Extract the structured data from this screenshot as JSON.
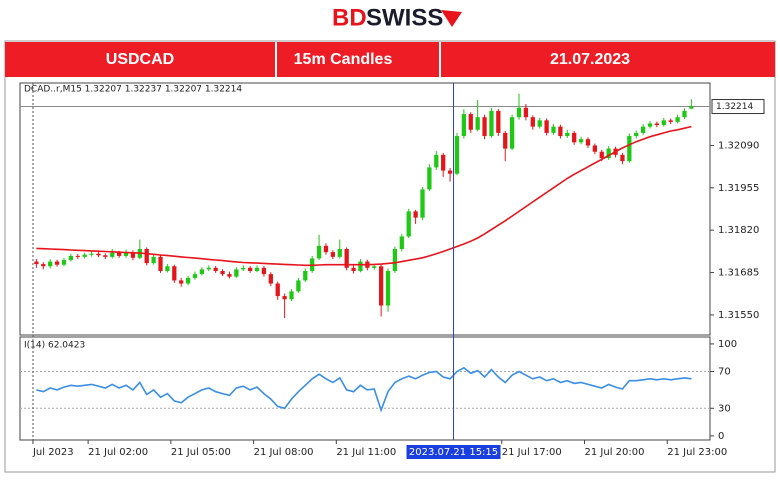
{
  "logo": [
    "BD",
    "SWISS"
  ],
  "header": {
    "symbol": "USDCAD",
    "timeframe": "15m Candles",
    "date": "21.07.2023"
  },
  "chart_data": {
    "type": "candlestick",
    "info": "DCAD..r,M15  1.32207 1.32237 1.32207 1.32214",
    "up_color": "#1fc814",
    "down_color": "#e3161c",
    "x": [
      0,
      0.25,
      0.5,
      0.75,
      1,
      1.25,
      1.5,
      1.75,
      2,
      2.25,
      2.5,
      2.75,
      3,
      3.25,
      3.5,
      3.75,
      4,
      4.25,
      4.5,
      4.75,
      5,
      5.25,
      5.5,
      5.75,
      6,
      6.25,
      6.5,
      6.75,
      7,
      7.25,
      7.5,
      7.75,
      8,
      8.25,
      8.5,
      8.75,
      9,
      9.25,
      9.5,
      9.75,
      10,
      10.25,
      10.5,
      10.75,
      11,
      11.25,
      11.5,
      11.75,
      12,
      12.25,
      12.5,
      12.75,
      13,
      13.25,
      13.5,
      13.75,
      14,
      14.25,
      14.5,
      14.75,
      15,
      15.25,
      15.5,
      15.75,
      16,
      16.25,
      16.5,
      16.75,
      17,
      17.25,
      17.5,
      17.75,
      18,
      18.25,
      18.5,
      18.75,
      19,
      19.25,
      19.5,
      19.75,
      20,
      20.25,
      20.5,
      20.75,
      21,
      21.25,
      21.5,
      21.75,
      22,
      22.25,
      22.5,
      22.75,
      23,
      23.25,
      23.5,
      23.75
    ],
    "open": [
      1.3172,
      1.31712,
      1.31705,
      1.3172,
      1.3171,
      1.31725,
      1.31738,
      1.31735,
      1.31742,
      1.31745,
      1.3174,
      1.31735,
      1.31748,
      1.31738,
      1.3175,
      1.31732,
      1.3176,
      1.31715,
      1.31735,
      1.3169,
      1.31705,
      1.3166,
      1.3165,
      1.31668,
      1.3168,
      1.31695,
      1.317,
      1.3169,
      1.3168,
      1.31672,
      1.31695,
      1.317,
      1.3169,
      1.317,
      1.3168,
      1.3165,
      1.3161,
      1.316,
      1.31625,
      1.3166,
      1.3169,
      1.3173,
      1.3177,
      1.3175,
      1.31735,
      1.3176,
      1.317,
      1.3169,
      1.3172,
      1.317,
      1.31705,
      1.3158,
      1.3169,
      1.3176,
      1.318,
      1.3188,
      1.3186,
      1.3195,
      1.3202,
      1.3206,
      1.3201,
      1.32,
      1.3212,
      1.3219,
      1.3214,
      1.3218,
      1.3212,
      1.322,
      1.3213,
      1.3208,
      1.3218,
      1.3221,
      1.3218,
      1.3215,
      1.3217,
      1.3213,
      1.3215,
      1.3212,
      1.3213,
      1.321,
      1.3211,
      1.3209,
      1.3207,
      1.3205,
      1.3208,
      1.3206,
      1.3204,
      1.3212,
      1.3213,
      1.3215,
      1.3216,
      1.32155,
      1.3217,
      1.32165,
      1.3218,
      1.32207
    ],
    "high": [
      1.31728,
      1.31718,
      1.31728,
      1.31726,
      1.31732,
      1.31745,
      1.31744,
      1.31748,
      1.31752,
      1.3175,
      1.31746,
      1.3176,
      1.31754,
      1.31758,
      1.31756,
      1.3179,
      1.31765,
      1.31742,
      1.3174,
      1.31712,
      1.3171,
      1.31668,
      1.31675,
      1.31688,
      1.31702,
      1.31708,
      1.31706,
      1.31696,
      1.31688,
      1.31702,
      1.31708,
      1.31706,
      1.31708,
      1.31706,
      1.31686,
      1.31656,
      1.31618,
      1.31632,
      1.31668,
      1.31698,
      1.31738,
      1.31805,
      1.31778,
      1.31756,
      1.3179,
      1.31765,
      1.31708,
      1.31728,
      1.31726,
      1.31712,
      1.3171,
      1.31698,
      1.31768,
      1.31808,
      1.31888,
      1.31885,
      1.31958,
      1.3203,
      1.32072,
      1.32066,
      1.32018,
      1.3213,
      1.32205,
      1.32196,
      1.32235,
      1.32188,
      1.3221,
      1.32206,
      1.32136,
      1.32188,
      1.32255,
      1.32222,
      1.32186,
      1.32178,
      1.32176,
      1.32158,
      1.32156,
      1.3214,
      1.32136,
      1.32118,
      1.32116,
      1.32096,
      1.32076,
      1.32088,
      1.32086,
      1.32066,
      1.32128,
      1.32138,
      1.32158,
      1.32168,
      1.32166,
      1.32178,
      1.32176,
      1.32188,
      1.32208,
      1.32237
    ],
    "low": [
      1.317,
      1.31695,
      1.31698,
      1.31704,
      1.31705,
      1.3172,
      1.31728,
      1.3173,
      1.31736,
      1.31734,
      1.31728,
      1.3173,
      1.31732,
      1.31732,
      1.31724,
      1.31728,
      1.31708,
      1.3171,
      1.31684,
      1.31685,
      1.31652,
      1.3164,
      1.31645,
      1.31662,
      1.31676,
      1.3169,
      1.31684,
      1.31674,
      1.31666,
      1.31668,
      1.3169,
      1.31684,
      1.31686,
      1.31672,
      1.31642,
      1.31598,
      1.3154,
      1.31594,
      1.3162,
      1.31655,
      1.31684,
      1.31725,
      1.31742,
      1.31728,
      1.3173,
      1.31692,
      1.31682,
      1.31686,
      1.31692,
      1.31694,
      1.31545,
      1.3156,
      1.31684,
      1.31752,
      1.31795,
      1.3184,
      1.31852,
      1.31945,
      1.32012,
      1.3199,
      1.31975,
      1.31995,
      1.32112,
      1.3213,
      1.32135,
      1.3211,
      1.32115,
      1.3212,
      1.3204,
      1.32075,
      1.32172,
      1.3217,
      1.3214,
      1.32144,
      1.32122,
      1.32124,
      1.32112,
      1.32114,
      1.32092,
      1.32094,
      1.32082,
      1.32062,
      1.3204,
      1.32044,
      1.32052,
      1.3203,
      1.32035,
      1.32112,
      1.32124,
      1.32144,
      1.32148,
      1.3215,
      1.32158,
      1.3216,
      1.32174,
      1.32207
    ],
    "close": [
      1.31712,
      1.31705,
      1.3172,
      1.3171,
      1.31725,
      1.31738,
      1.31735,
      1.31742,
      1.31745,
      1.3174,
      1.31735,
      1.31748,
      1.31738,
      1.3175,
      1.31732,
      1.3176,
      1.31715,
      1.31735,
      1.3169,
      1.31705,
      1.3166,
      1.3165,
      1.31668,
      1.3168,
      1.31695,
      1.317,
      1.3169,
      1.3168,
      1.31672,
      1.31695,
      1.317,
      1.3169,
      1.317,
      1.3168,
      1.3165,
      1.3161,
      1.316,
      1.31625,
      1.3166,
      1.3169,
      1.3173,
      1.3177,
      1.3175,
      1.31735,
      1.3176,
      1.317,
      1.3169,
      1.3172,
      1.317,
      1.31705,
      1.3158,
      1.3169,
      1.3176,
      1.318,
      1.3188,
      1.3186,
      1.3195,
      1.3202,
      1.3206,
      1.3201,
      1.32,
      1.3212,
      1.3219,
      1.3214,
      1.3218,
      1.3212,
      1.322,
      1.3213,
      1.3208,
      1.3218,
      1.3221,
      1.3218,
      1.3215,
      1.3217,
      1.3213,
      1.3215,
      1.3212,
      1.3213,
      1.321,
      1.3211,
      1.3209,
      1.3207,
      1.3205,
      1.3208,
      1.3206,
      1.3204,
      1.3212,
      1.3213,
      1.3215,
      1.3216,
      1.32155,
      1.3217,
      1.32165,
      1.3218,
      1.322,
      1.32214
    ],
    "ma": {
      "color": "#e8131b",
      "values": [
        1.31762,
        1.31761,
        1.3176,
        1.31759,
        1.31758,
        1.31757,
        1.31756,
        1.31755,
        1.31754,
        1.31753,
        1.31752,
        1.31751,
        1.3175,
        1.31749,
        1.31748,
        1.31747,
        1.31745,
        1.31743,
        1.31741,
        1.31739,
        1.31737,
        1.31735,
        1.31733,
        1.31731,
        1.31729,
        1.31727,
        1.31725,
        1.31723,
        1.31721,
        1.31719,
        1.31717,
        1.31716,
        1.31715,
        1.31714,
        1.31713,
        1.31712,
        1.31711,
        1.3171,
        1.31709,
        1.31708,
        1.31708,
        1.31709,
        1.3171,
        1.3171,
        1.3171,
        1.3171,
        1.3171,
        1.3171,
        1.3171,
        1.31711,
        1.31712,
        1.31714,
        1.31716,
        1.3172,
        1.31724,
        1.31728,
        1.31732,
        1.31738,
        1.31745,
        1.31752,
        1.3176,
        1.31768,
        1.31776,
        1.31785,
        1.31795,
        1.31808,
        1.31822,
        1.31836,
        1.3185,
        1.31865,
        1.3188,
        1.31895,
        1.3191,
        1.31925,
        1.3194,
        1.31955,
        1.3197,
        1.31985,
        1.31998,
        1.3201,
        1.32022,
        1.32034,
        1.32046,
        1.32058,
        1.3207,
        1.32082,
        1.32092,
        1.32102,
        1.3211,
        1.32118,
        1.32124,
        1.3213,
        1.32136,
        1.3214,
        1.32145,
        1.3215
      ]
    },
    "xlim": [
      -0.47,
      24.55
    ],
    "xticks": [
      {
        "value": 0,
        "label": "Jul 2023"
      },
      {
        "value": 2,
        "label": "21 Jul 02:00"
      },
      {
        "value": 5,
        "label": "21 Jul 05:00"
      },
      {
        "value": 8,
        "label": "21 Jul 08:00"
      },
      {
        "value": 11,
        "label": "21 Jul 11:00"
      },
      {
        "value": 17,
        "label": "21 Jul 17:00"
      },
      {
        "value": 20,
        "label": "21 Jul 20:00"
      },
      {
        "value": 23,
        "label": "21 Jul 23:00"
      }
    ],
    "ylim": [
      1.31486,
      1.32289
    ],
    "yticks": [
      {
        "value": 1.3155,
        "label": "1.31550"
      },
      1.31685,
      {
        "value": 1.3182,
        "label": "1.31820"
      },
      1.31955,
      {
        "value": 1.3209,
        "label": "1.32090"
      }
    ],
    "last_price": 1.32214,
    "crosshair": {
      "value": 15.25,
      "label": "2023.07.21 15:15"
    },
    "rsi": {
      "label": "I(14) 62.0423",
      "color": "#3a8ee6",
      "values": [
        50,
        48,
        52,
        50,
        53,
        55,
        54,
        55,
        56,
        54,
        52,
        56,
        52,
        55,
        50,
        58,
        45,
        50,
        42,
        46,
        38,
        36,
        42,
        46,
        50,
        52,
        48,
        46,
        44,
        52,
        54,
        50,
        53,
        46,
        40,
        32,
        30,
        40,
        48,
        55,
        62,
        67,
        62,
        58,
        63,
        50,
        48,
        55,
        50,
        51,
        28,
        48,
        58,
        62,
        65,
        62,
        66,
        69,
        70,
        64,
        62,
        70,
        74,
        68,
        71,
        64,
        72,
        64,
        58,
        66,
        70,
        66,
        62,
        64,
        60,
        62,
        58,
        60,
        57,
        58,
        56,
        54,
        52,
        56,
        53,
        51,
        60,
        60,
        61,
        62,
        61,
        62,
        61,
        62,
        63,
        62.0423
      ],
      "ylim": [
        -4.5,
        107.5
      ],
      "yticks": [
        0,
        30,
        70,
        100
      ],
      "levels": [
        30,
        70
      ]
    }
  }
}
